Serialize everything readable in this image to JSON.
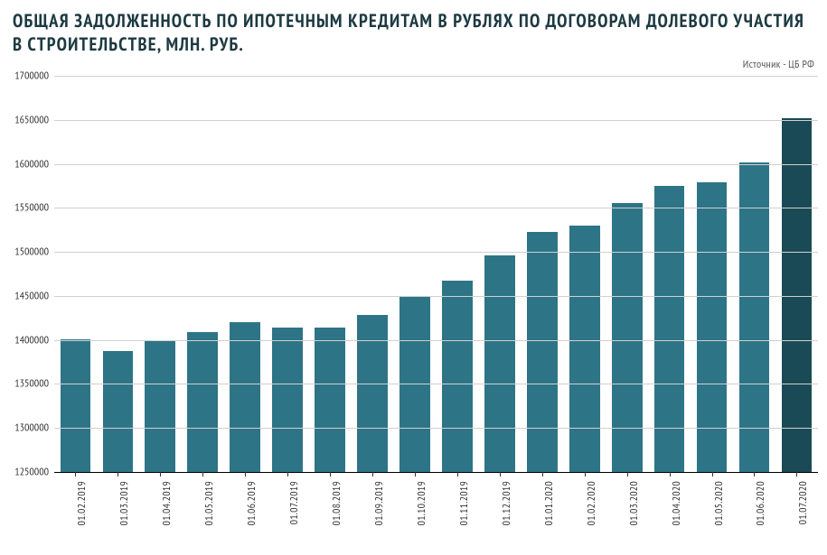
{
  "chart": {
    "type": "bar",
    "title": "ОБЩАЯ ЗАДОЛЖЕННОСТЬ ПО ИПОТЕЧНЫМ КРЕДИТАМ В РУБЛЯХ ПО ДОГОВОРАМ ДОЛЕВОГО УЧАСТИЯ В СТРОИТЕЛЬСТВЕ, МЛН. РУБ.",
    "source_label": "Источник - ЦБ РФ",
    "title_color": "#1d3a42",
    "title_fontsize": 20.5,
    "title_letter_spacing": 1.2,
    "source_fontsize": 12,
    "source_color": "#555555",
    "background_color": "#ffffff",
    "grid_color": "#d0d0d0",
    "axis_color": "#000000",
    "tick_label_color": "#333333",
    "tick_fontsize": 12,
    "ylim": [
      1250000,
      1700000
    ],
    "yticks": [
      1250000,
      1300000,
      1350000,
      1400000,
      1450000,
      1500000,
      1550000,
      1600000,
      1650000,
      1700000
    ],
    "bar_color": "#2e7487",
    "highlight_color": "#1a4a55",
    "bar_width_ratio": 0.72,
    "categories": [
      "01.02.2019",
      "01.03.2019",
      "01.04.2019",
      "01.05.2019",
      "01.06.2019",
      "01.07.2019",
      "01.08.2019",
      "01.09.2019",
      "01.10.2019",
      "01.11.2019",
      "01.12.2019",
      "01.01.2020",
      "01.02.2020",
      "01.03.2020",
      "01.04.2020",
      "01.05.2020",
      "01.06.2020",
      "01.07.2020"
    ],
    "values": [
      1400500,
      1387500,
      1399000,
      1408500,
      1420000,
      1414500,
      1414500,
      1428500,
      1449000,
      1467500,
      1496000,
      1522500,
      1530000,
      1555000,
      1575000,
      1579500,
      1602000,
      1651500
    ],
    "highlight_index": 17
  }
}
